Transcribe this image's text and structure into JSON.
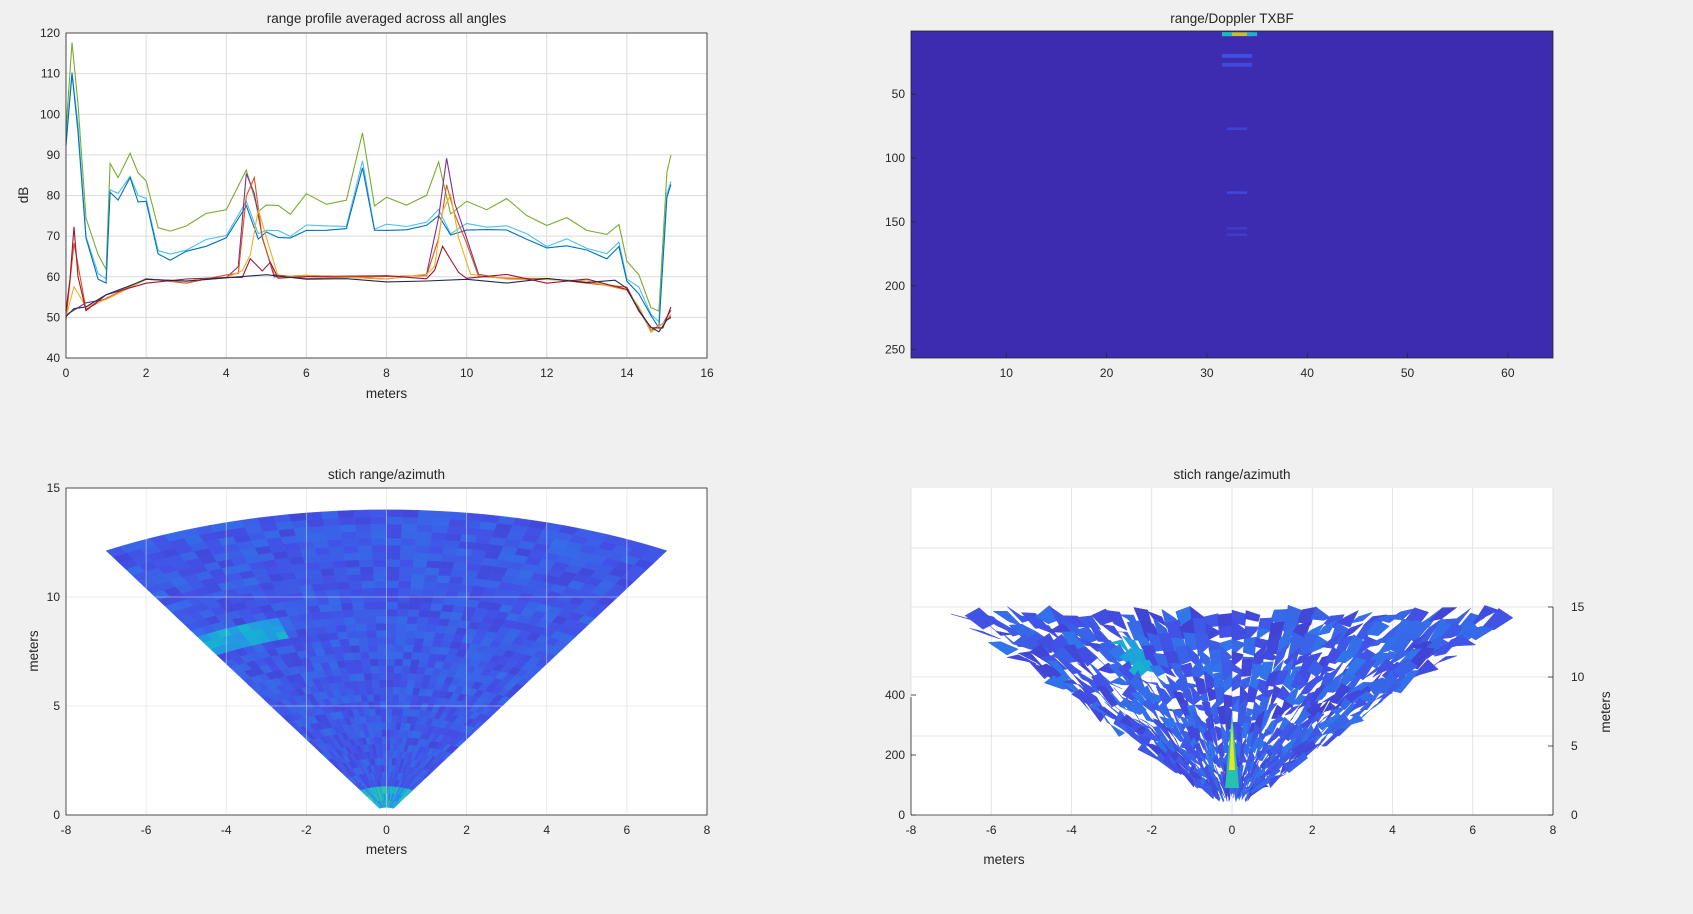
{
  "colors": {
    "figure_bg": "#f0f0f0",
    "axes_bg": "#ffffff",
    "grid": "#dcdcdc",
    "axis": "#262626",
    "heat_low": "#3d26a8",
    "heat_mid": "#2f9df5",
    "heat_high": "#35c5a8",
    "heat_peak": "#f9fb0e"
  },
  "chart_data": [
    {
      "type": "line",
      "title": "range profile averaged across all angles",
      "xlabel": "meters",
      "ylabel": "dB",
      "xlim": [
        0,
        16
      ],
      "ylim": [
        40,
        120
      ],
      "xticks": [
        "0",
        "2",
        "4",
        "6",
        "8",
        "10",
        "12",
        "14",
        "16"
      ],
      "yticks": [
        "40",
        "50",
        "60",
        "70",
        "80",
        "90",
        "100",
        "110",
        "120"
      ],
      "grid": true,
      "series": [
        {
          "color": "#77ac30",
          "x": [
            0,
            0.15,
            0.3,
            0.5,
            0.8,
            1.0,
            1.1,
            1.3,
            1.6,
            1.8,
            2.0,
            2.3,
            2.6,
            3.0,
            3.5,
            4.0,
            4.5,
            4.8,
            5.0,
            5.3,
            5.6,
            6.0,
            6.5,
            7.0,
            7.4,
            7.7,
            8.0,
            8.5,
            9.0,
            9.3,
            9.6,
            10.0,
            10.5,
            11.0,
            11.5,
            12.0,
            12.5,
            13.0,
            13.5,
            13.8,
            14.0,
            14.3,
            14.6,
            14.8,
            15.0,
            15.1
          ],
          "y": [
            96,
            118,
            102,
            75,
            65,
            62,
            88,
            84,
            91,
            85,
            84,
            72,
            71,
            73,
            75,
            77,
            86,
            76,
            78,
            77,
            76,
            80,
            78,
            79,
            95,
            78,
            79,
            78,
            80,
            88,
            76,
            78,
            77,
            79,
            75,
            73,
            74,
            72,
            70,
            73,
            64,
            60,
            53,
            51,
            86,
            90
          ]
        },
        {
          "color": "#4dbeee",
          "x": [
            0,
            0.15,
            0.3,
            0.5,
            0.8,
            1.0,
            1.1,
            1.3,
            1.6,
            1.8,
            2.0,
            2.3,
            2.6,
            3.0,
            3.5,
            4.0,
            4.5,
            4.8,
            5.0,
            5.3,
            5.6,
            6.0,
            6.5,
            7.0,
            7.4,
            7.7,
            8.0,
            8.5,
            9.0,
            9.3,
            9.6,
            10.0,
            10.5,
            11.0,
            11.5,
            12.0,
            12.5,
            13.0,
            13.5,
            13.8,
            14.0,
            14.3,
            14.6,
            14.8,
            15.0,
            15.1
          ],
          "y": [
            93,
            111,
            97,
            70,
            61,
            59,
            82,
            80,
            85,
            80,
            79,
            67,
            65,
            67,
            69,
            70,
            79,
            70,
            72,
            71,
            70,
            73,
            72,
            73,
            88,
            72,
            73,
            72,
            74,
            76,
            71,
            73,
            72,
            73,
            70,
            68,
            69,
            67,
            66,
            68,
            60,
            57,
            51,
            49,
            80,
            84
          ]
        },
        {
          "color": "#0072bd",
          "x": [
            0,
            0.15,
            0.3,
            0.5,
            0.8,
            1.0,
            1.1,
            1.3,
            1.6,
            1.8,
            2.0,
            2.3,
            2.6,
            3.0,
            3.5,
            4.0,
            4.5,
            4.8,
            5.0,
            5.3,
            5.6,
            6.0,
            6.5,
            7.0,
            7.4,
            7.7,
            8.0,
            8.5,
            9.0,
            9.3,
            9.6,
            10.0,
            10.5,
            11.0,
            11.5,
            12.0,
            12.5,
            13.0,
            13.5,
            13.8,
            14.0,
            14.3,
            14.6,
            14.8,
            15.0,
            15.1
          ],
          "y": [
            92,
            110,
            96,
            69,
            60,
            58,
            81,
            79,
            84,
            79,
            78,
            66,
            64,
            66,
            68,
            69,
            78,
            69,
            71,
            70,
            69,
            72,
            71,
            72,
            87,
            71,
            72,
            71,
            73,
            75,
            70,
            72,
            71,
            72,
            69,
            67,
            68,
            66,
            65,
            67,
            59,
            56,
            50,
            48,
            79,
            83
          ]
        },
        {
          "color": "#7e2f8e",
          "x": [
            0,
            0.5,
            1.0,
            2.0,
            3.0,
            4.0,
            4.3,
            4.5,
            4.7,
            4.9,
            5.2,
            6.0,
            8.0,
            9.0,
            9.3,
            9.5,
            9.7,
            10.0,
            10.3,
            11.0,
            12.0,
            13.0,
            14.0,
            14.3,
            14.6,
            14.9,
            15.1
          ],
          "y": [
            51,
            53,
            55,
            59,
            59,
            60,
            62,
            86,
            80,
            70,
            60,
            60,
            60,
            60,
            75,
            89,
            78,
            70,
            60,
            60,
            59,
            59,
            57,
            52,
            47,
            48,
            52
          ]
        },
        {
          "color": "#d95319",
          "x": [
            0,
            0.2,
            0.5,
            1.0,
            2.0,
            3.0,
            4.0,
            4.3,
            4.5,
            4.7,
            4.9,
            5.2,
            6.0,
            8.0,
            9.0,
            9.3,
            9.5,
            9.7,
            10.0,
            10.3,
            11.0,
            12.0,
            13.0,
            14.0,
            14.3,
            14.6,
            14.9,
            15.1
          ],
          "y": [
            50,
            68,
            52,
            55,
            59,
            59,
            60,
            61,
            80,
            84,
            70,
            60,
            60,
            60,
            60,
            70,
            82,
            76,
            68,
            60,
            60,
            59,
            59,
            57,
            52,
            47,
            48,
            51
          ]
        },
        {
          "color": "#edb120",
          "x": [
            0,
            0.2,
            0.5,
            1.0,
            2.0,
            3.0,
            4.0,
            4.4,
            4.6,
            4.8,
            5.0,
            5.3,
            6.0,
            8.0,
            9.0,
            9.2,
            9.4,
            9.6,
            9.8,
            10.1,
            11.0,
            12.0,
            13.0,
            14.0,
            14.3,
            14.6,
            14.9,
            15.1
          ],
          "y": [
            50,
            58,
            52,
            55,
            59,
            59,
            60,
            61,
            66,
            76,
            70,
            60,
            60,
            60,
            60,
            63,
            76,
            80,
            70,
            60,
            60,
            59,
            59,
            57,
            52,
            47,
            48,
            51
          ]
        },
        {
          "color": "#a2142f",
          "x": [
            0,
            0.1,
            0.2,
            0.3,
            0.5,
            1.0,
            2.0,
            3.0,
            4.0,
            4.4,
            4.6,
            4.9,
            5.1,
            5.3,
            6.0,
            8.0,
            9.0,
            9.2,
            9.4,
            9.6,
            9.8,
            10.0,
            11.0,
            12.0,
            13.0,
            14.0,
            14.3,
            14.6,
            14.9,
            15.1
          ],
          "y": [
            51,
            60,
            72,
            60,
            52,
            55,
            59,
            59,
            60,
            60,
            64,
            62,
            63,
            60,
            60,
            60,
            60,
            61,
            68,
            64,
            61,
            60,
            60,
            59,
            59,
            57,
            52,
            47,
            48,
            52
          ]
        },
        {
          "color": "#1b2a5b",
          "x": [
            0,
            0.2,
            0.5,
            1.0,
            1.5,
            2.0,
            3.0,
            4.0,
            5.0,
            6.0,
            7.0,
            8.0,
            9.0,
            10.0,
            11.0,
            12.0,
            13.0,
            13.7,
            14.0,
            14.3,
            14.6,
            14.8,
            15.0,
            15.1
          ],
          "y": [
            50,
            52,
            53,
            55,
            58,
            59,
            59,
            60,
            60,
            60,
            59,
            59,
            59,
            59,
            59,
            59,
            59,
            59,
            57,
            52,
            47,
            47,
            49,
            50
          ]
        }
      ]
    },
    {
      "type": "heatmap",
      "title": "range/Doppler TXBF",
      "xlim": [
        0.5,
        64.5
      ],
      "ylim": [
        0.5,
        256.5
      ],
      "xticks": [
        "10",
        "20",
        "30",
        "40",
        "50",
        "60"
      ],
      "yticks": [
        "50",
        "100",
        "150",
        "200",
        "250"
      ],
      "columns": 64,
      "rows": 256,
      "background_level": 0.02,
      "hotspots": [
        {
          "x": 33,
          "y": 3,
          "w": 3,
          "h": 3,
          "level": 0.85
        },
        {
          "x": 32,
          "y": 3,
          "w": 1,
          "h": 3,
          "level": 0.55
        },
        {
          "x": 34.5,
          "y": 3,
          "w": 1,
          "h": 3,
          "level": 0.5
        },
        {
          "x": 33,
          "y": 20,
          "w": 3,
          "h": 3,
          "level": 0.14
        },
        {
          "x": 33,
          "y": 27,
          "w": 3,
          "h": 3,
          "level": 0.12
        },
        {
          "x": 33,
          "y": 77,
          "w": 2,
          "h": 2,
          "level": 0.1
        },
        {
          "x": 33,
          "y": 127,
          "w": 2,
          "h": 2,
          "level": 0.12
        },
        {
          "x": 33,
          "y": 155,
          "w": 2,
          "h": 2,
          "level": 0.08
        },
        {
          "x": 33,
          "y": 160,
          "w": 2,
          "h": 2,
          "level": 0.08
        }
      ]
    },
    {
      "type": "heatmap",
      "title": "stich range/azimuth",
      "xlabel": "meters",
      "ylabel": "meters",
      "xlim": [
        -8,
        8
      ],
      "ylim": [
        0,
        15
      ],
      "xticks": [
        "-8",
        "-6",
        "-4",
        "-2",
        "0",
        "2",
        "4",
        "6",
        "8"
      ],
      "yticks": [
        "0",
        "5",
        "10",
        "15"
      ],
      "fan": {
        "max_range_m": 14,
        "half_angle_deg": 30
      },
      "grid": true
    },
    {
      "type": "heatmap",
      "title": "stich range/azimuth",
      "xlabel": "meters",
      "zlabel": "meters",
      "xlim": [
        -8,
        8
      ],
      "xticks": [
        "-8",
        "-6",
        "-4",
        "-2",
        "0",
        "2",
        "4",
        "6",
        "8"
      ],
      "left_ticks": [
        "0",
        "200",
        "400"
      ],
      "right_ticks": [
        "0",
        "5",
        "10",
        "15"
      ],
      "grid": true
    }
  ]
}
